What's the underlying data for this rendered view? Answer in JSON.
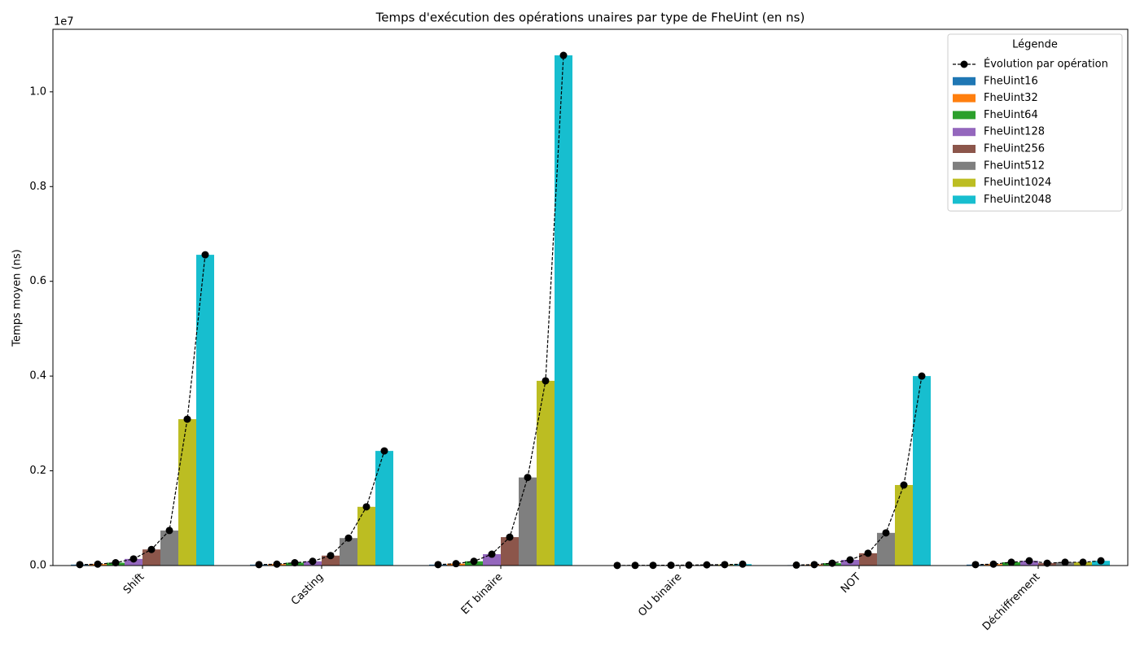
{
  "chart_data": {
    "type": "bar",
    "title": "Temps d'exécution des opérations unaires par type de FheUint (en ns)",
    "y_label": "Temps moyen (ns)",
    "y_offset_label": "1e7",
    "categories": [
      "Shift",
      "Casting",
      "ET binaire",
      "OU binaire",
      "NOT",
      "Déchiffrement"
    ],
    "series": [
      {
        "name": "FheUint16",
        "color": "#1f77b4",
        "values": [
          0.002,
          0.002,
          0.002,
          0.0003,
          0.001,
          0.002
        ]
      },
      {
        "name": "FheUint32",
        "color": "#ff7f0e",
        "values": [
          0.003,
          0.003,
          0.004,
          0.0004,
          0.002,
          0.003
        ]
      },
      {
        "name": "FheUint64",
        "color": "#2ca02c",
        "values": [
          0.006,
          0.006,
          0.009,
          0.0005,
          0.005,
          0.007
        ]
      },
      {
        "name": "FheUint128",
        "color": "#9467bd",
        "values": [
          0.014,
          0.009,
          0.024,
          0.0007,
          0.012,
          0.01
        ]
      },
      {
        "name": "FheUint256",
        "color": "#8c564b",
        "values": [
          0.034,
          0.021,
          0.06,
          0.001,
          0.026,
          0.005
        ]
      },
      {
        "name": "FheUint512",
        "color": "#7f7f7f",
        "values": [
          0.074,
          0.058,
          0.186,
          0.0015,
          0.069,
          0.007
        ]
      },
      {
        "name": "FheUint1024",
        "color": "#bcbd22",
        "values": [
          0.309,
          0.124,
          0.39,
          0.002,
          0.17,
          0.007
        ]
      },
      {
        "name": "FheUint2048",
        "color": "#17becf",
        "values": [
          0.656,
          0.242,
          1.077,
          0.003,
          0.4,
          0.01
        ]
      }
    ],
    "line": {
      "name": "Évolution par opération",
      "color": "#000000"
    },
    "ylim": [
      0,
      1.132
    ],
    "yticks": [
      {
        "value": 0,
        "label": "0.0"
      },
      0.2,
      0.4,
      0.6,
      0.8,
      {
        "value": 1,
        "label": "1.0"
      }
    ],
    "legend": {
      "title": "Légende",
      "position": "upper right"
    },
    "grid": false
  }
}
